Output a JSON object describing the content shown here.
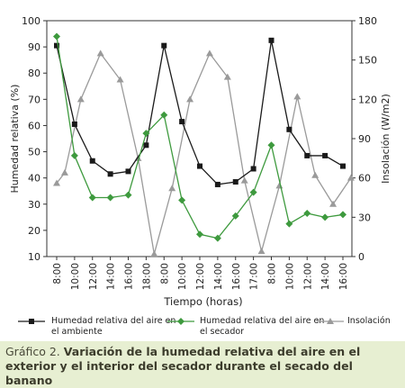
{
  "chart_data": {
    "type": "line",
    "title": "",
    "xlabel": "Tiempo (horas)",
    "ylabel": "Humedad relativa (%)",
    "y2label": "Insolación (W/m2)",
    "ylim": [
      10,
      100
    ],
    "y2lim": [
      0,
      180
    ],
    "yticks": [
      "10",
      "20",
      "30",
      "40",
      "50",
      "60",
      "70",
      "80",
      "90",
      "100"
    ],
    "y2ticks": [
      "0",
      "30",
      "60",
      "90",
      "120",
      "150",
      "180"
    ],
    "categories": [
      "8:00",
      "10:00",
      "12:00",
      "14:00",
      "16:00",
      "18:00",
      "8:00",
      "10:00",
      "12:00",
      "14:00",
      "16:00",
      "17:00",
      "8:00",
      "10:00",
      "12:00",
      "14:00",
      "16:00"
    ],
    "x": [
      0,
      1,
      2,
      3,
      4,
      5,
      6,
      7,
      8,
      9,
      10,
      11,
      12,
      13,
      14,
      15,
      16
    ],
    "series": [
      {
        "name": "Humedad relativa del aire en el ambiente",
        "axis": "left",
        "color": "#1a1a1a",
        "marker": "square",
        "x": [
          0,
          1,
          2,
          3,
          4,
          5,
          6,
          7,
          8,
          9,
          10,
          11,
          12,
          13,
          14,
          15,
          16
        ],
        "values": [
          90.5,
          60.5,
          46.5,
          41.5,
          42.5,
          52.5,
          90.5,
          61.5,
          44.5,
          37.5,
          38.5,
          43.5,
          92.5,
          58.5,
          48.5,
          48.5,
          44.5
        ]
      },
      {
        "name": "Humedad relativa del aire en el secador",
        "axis": "left",
        "color": "#3e9a3e",
        "marker": "diamond",
        "x": [
          0,
          1,
          2,
          3,
          4,
          5,
          6,
          7,
          8,
          9,
          10,
          11,
          12,
          13,
          14,
          15,
          16
        ],
        "values": [
          94,
          48.5,
          32.5,
          32.5,
          33.5,
          57,
          64,
          31.5,
          18.5,
          17,
          25.5,
          34.5,
          52.5,
          22.5,
          26.5,
          25,
          26
        ]
      },
      {
        "name": "Insolación",
        "axis": "right",
        "color": "#9a9a9a",
        "marker": "triangle",
        "x": [
          0,
          0.45,
          1.35,
          2.45,
          3.55,
          4.55,
          5.45,
          6.45,
          7.45,
          8.55,
          9.55,
          10.5,
          11.45,
          12.45,
          13.45,
          14.45,
          15.45,
          16.45
        ],
        "values": [
          56,
          64,
          120,
          155,
          135,
          75,
          2,
          52,
          120,
          155,
          137,
          58,
          4,
          54,
          122,
          62,
          40,
          60
        ]
      }
    ],
    "legend_position": "bottom",
    "grid": false
  },
  "caption": {
    "lead": "Gráfico 2.",
    "text": "Variación de la humedad relativa del aire en el exterior y el interior del secador durante el secado del banano"
  }
}
